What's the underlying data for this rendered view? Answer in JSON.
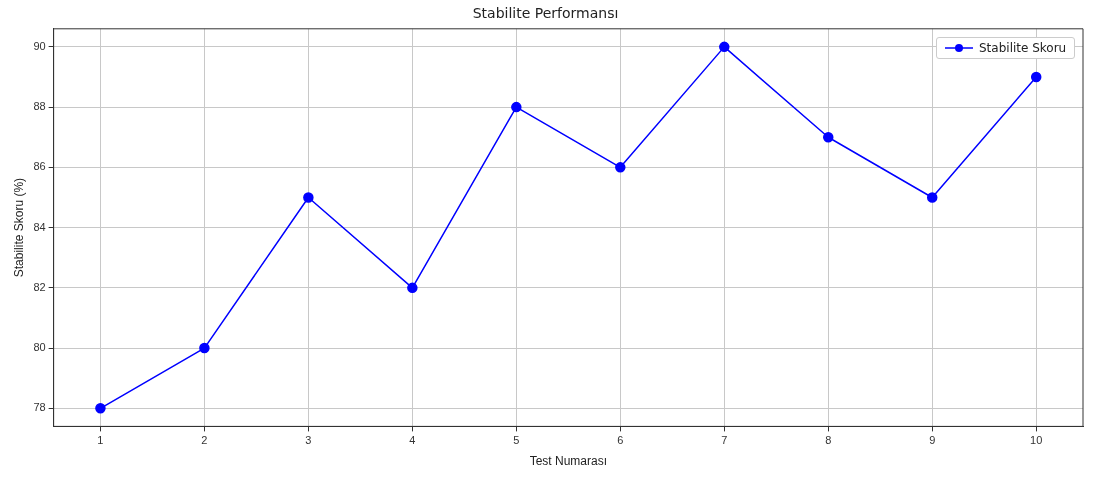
{
  "chart_data": {
    "type": "line",
    "title": "Stabilite Performansı",
    "xlabel": "Test Numarası",
    "ylabel": "Stabilite Skoru (%)",
    "x": [
      1,
      2,
      3,
      4,
      5,
      6,
      7,
      8,
      9,
      10
    ],
    "series": [
      {
        "name": "Stabilite Skoru",
        "color": "#0000ff",
        "values": [
          78,
          80,
          85,
          82,
          88,
          86,
          90,
          87,
          85,
          89
        ]
      }
    ],
    "xlim": [
      0.55,
      10.45
    ],
    "xticks": [
      1,
      2,
      3,
      4,
      5,
      6,
      7,
      8,
      9,
      10
    ],
    "ylim": [
      77.4,
      90.6
    ],
    "yticks": [
      78,
      80,
      82,
      84,
      86,
      88,
      90
    ],
    "grid": true,
    "legend": "top right",
    "marker": "circle",
    "line_style": "solid"
  }
}
